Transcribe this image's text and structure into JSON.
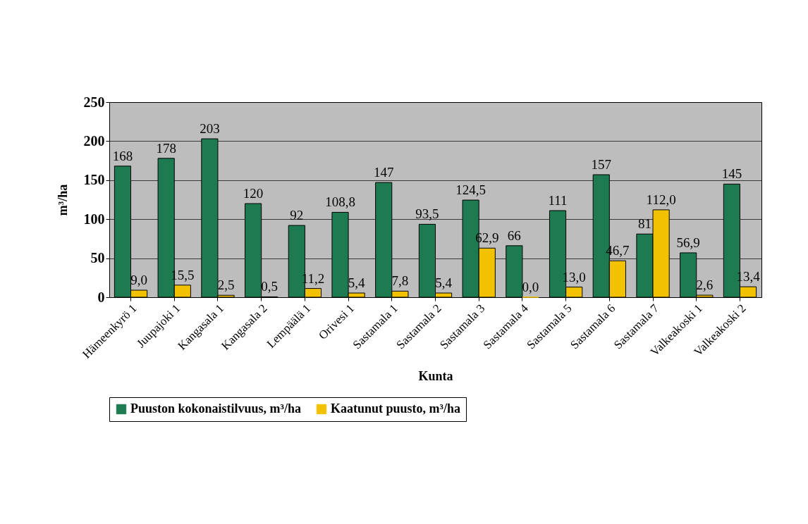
{
  "chart_data": {
    "type": "bar",
    "xlabel": "Kunta",
    "ylabel": "m³/ha",
    "categories": [
      "Hämeenkyrö 1",
      "Juupajoki 1",
      "Kangasala 1",
      "Kangasala 2",
      "Lempäälä 1",
      "Orivesi 1",
      "Sastamala 1",
      "Sastamala 2",
      "Sastamala 3",
      "Sastamala 4",
      "Sastamala 5",
      "Sastamala 6",
      "Sastamala 7",
      "Valkeakoski 1",
      "Valkeakoski 2"
    ],
    "series": [
      {
        "name": "Puuston kokonaistilvuus, m³/ha",
        "color": "#1e7a50",
        "values": [
          168,
          178,
          203,
          120,
          92,
          108.8,
          147,
          93.5,
          124.5,
          66,
          111,
          157,
          81,
          56.9,
          145
        ],
        "value_labels": [
          "168",
          "178",
          "203",
          "120",
          "92",
          "108,8",
          "147",
          "93,5",
          "124,5",
          "66",
          "111",
          "157",
          "81",
          "56,9",
          "145"
        ]
      },
      {
        "name": "Kaatunut puusto, m³/ha",
        "color": "#f2c200",
        "values": [
          9.0,
          15.5,
          2.5,
          0.5,
          11.2,
          5.4,
          7.8,
          5.4,
          62.9,
          0.0,
          13.0,
          46.7,
          112.0,
          2.6,
          13.4
        ],
        "value_labels": [
          "9,0",
          "15,5",
          "2,5",
          "0,5",
          "11,2",
          "5,4",
          "7,8",
          "5,4",
          "62,9",
          "0,0",
          "13,0",
          "46,7",
          "112,0",
          "2,6",
          "13,4"
        ]
      }
    ],
    "ylim": [
      0,
      250
    ],
    "yticks": [
      0,
      50,
      100,
      150,
      200,
      250
    ],
    "grid": "y",
    "legend": "bottom"
  }
}
